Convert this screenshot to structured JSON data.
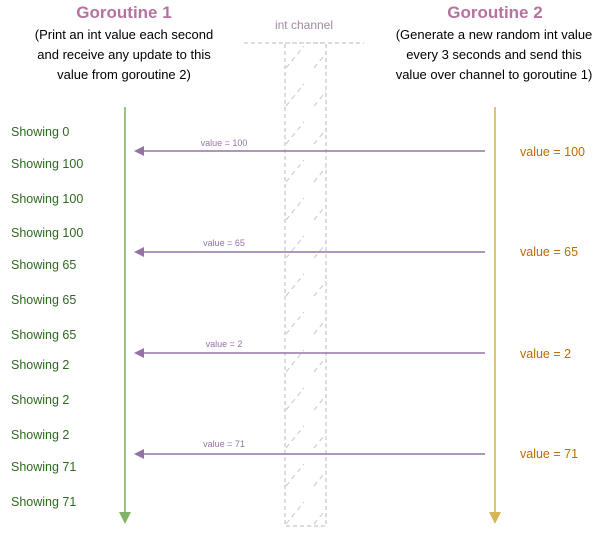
{
  "colors": {
    "title": "#b5739d",
    "green_text": "#2d6a1f",
    "green_line": "#82b366",
    "orange_text": "#c06a00",
    "orange_line": "#d6b656",
    "purple": "#9673a6",
    "channel": "#bbbbbb",
    "channel_label": "#a08aa0"
  },
  "goroutine1": {
    "title": "Goroutine 1",
    "desc_lines": [
      "(Print an int value each second",
      "and receive any update to this",
      "value from goroutine 2)"
    ],
    "showing": [
      "Showing 0",
      "Showing 100",
      "Showing 100",
      "Showing 100",
      "Showing 65",
      "Showing 65",
      "Showing 65",
      "Showing 2",
      "Showing 2",
      "Showing 2",
      "Showing 71",
      "Showing 71"
    ]
  },
  "goroutine2": {
    "title": "Goroutine 2",
    "desc_lines": [
      "(Generate a new random int value",
      "every 3 seconds and send this",
      "value over channel to goroutine 1)"
    ],
    "values": [
      "value = 100",
      "value = 65",
      "value =  2",
      "value = 71"
    ]
  },
  "channel": {
    "label": "int channel"
  },
  "arrows": [
    "value = 100",
    "value = 65",
    "value = 2",
    "value = 71"
  ]
}
